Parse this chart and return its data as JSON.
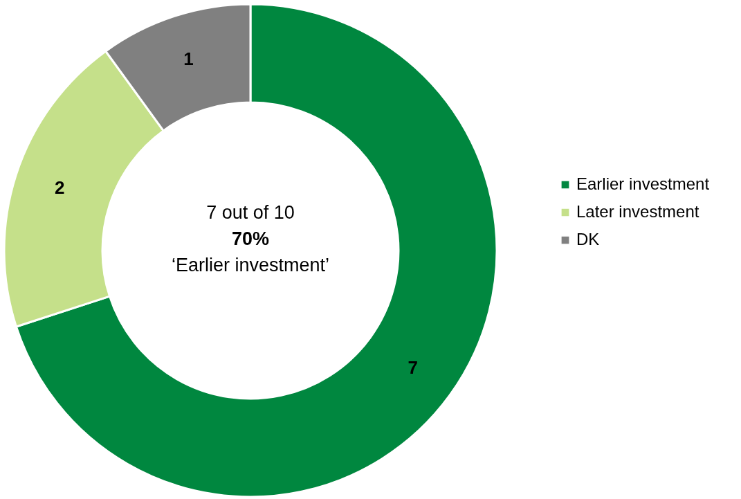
{
  "chart_data": {
    "type": "donut",
    "categories": [
      "Earlier investment",
      "Later investment",
      "DK"
    ],
    "values": [
      7,
      2,
      1
    ],
    "colors": [
      "#00873f",
      "#c5e08a",
      "#808080"
    ],
    "data_labels": true,
    "legend": "right",
    "annotations": [
      "7 out of 10",
      "70%",
      "‘Earlier investment’"
    ]
  }
}
